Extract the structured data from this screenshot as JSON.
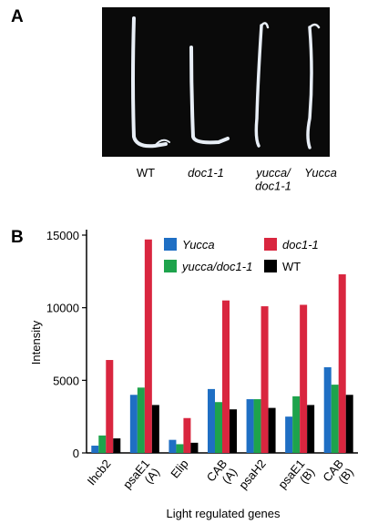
{
  "panels": [
    "A",
    "B"
  ],
  "photo_labels": [
    "WT",
    "doc1-1",
    "yucca/\ndoc1-1",
    "Yucca"
  ],
  "chart_data": {
    "type": "bar",
    "ylabel": "Intensity",
    "xlabel": "Light regulated genes",
    "categories": [
      "Ihcb2",
      "psaE1\n(A)",
      "Elip",
      "CAB\n(A)",
      "psaH2",
      "psaE1\n(B)",
      "CAB\n(B)"
    ],
    "series": [
      {
        "name": "Yucca",
        "color": "#1f6fc4",
        "values": [
          500,
          4000,
          900,
          4400,
          3700,
          2500,
          5900
        ]
      },
      {
        "name": "yucca/doc1-1",
        "color": "#1ea34c",
        "values": [
          1200,
          4500,
          600,
          3500,
          3700,
          3900,
          4700
        ]
      },
      {
        "name": "doc1-1",
        "color": "#d9263f",
        "values": [
          6400,
          14700,
          2400,
          10500,
          10100,
          10200,
          12300
        ]
      },
      {
        "name": "WT",
        "color": "#000000",
        "values": [
          1000,
          3300,
          700,
          3000,
          3100,
          3300,
          4000
        ]
      }
    ],
    "ylim": [
      0,
      15000
    ],
    "yticks": [
      0,
      5000,
      10000,
      15000
    ]
  }
}
